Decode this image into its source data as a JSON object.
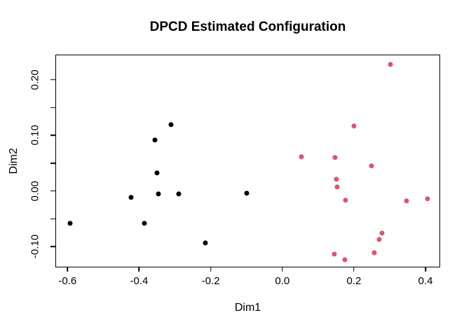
{
  "title": "DPCD Estimated Configuration",
  "chart_data": {
    "type": "scatter",
    "title": "DPCD Estimated Configuration",
    "xlabel": "Dim1",
    "ylabel": "Dim2",
    "xlim": [
      -0.632,
      0.439
    ],
    "ylim": [
      -0.136,
      0.244
    ],
    "grid": false,
    "legend": "none",
    "x_ticks": [
      {
        "value": -0.6,
        "label": "-0.6"
      },
      {
        "value": -0.4,
        "label": "-0.4"
      },
      {
        "value": -0.2,
        "label": "-0.2"
      },
      {
        "value": 0.0,
        "label": "0.0"
      },
      {
        "value": 0.2,
        "label": "0.2"
      },
      {
        "value": 0.4,
        "label": "0.4"
      }
    ],
    "y_ticks": [
      {
        "value": 0.2,
        "label": "0.20"
      },
      {
        "value": 0.15,
        "label": ""
      },
      {
        "value": 0.1,
        "label": "0.10"
      },
      {
        "value": 0.05,
        "label": ""
      },
      {
        "value": 0.0,
        "label": "0.00"
      },
      {
        "value": -0.05,
        "label": ""
      },
      {
        "value": -0.1,
        "label": "-0.10"
      }
    ],
    "series": [
      {
        "name": "cluster-1-black",
        "color": "#000000",
        "marker": "filled-circle",
        "points": [
          [
            -0.31,
            0.12
          ],
          [
            -0.355,
            0.092
          ],
          [
            -0.35,
            0.033
          ],
          [
            -0.346,
            -0.005
          ],
          [
            -0.29,
            -0.005
          ],
          [
            -0.423,
            -0.011
          ],
          [
            -0.593,
            -0.058
          ],
          [
            -0.386,
            -0.058
          ],
          [
            -0.1,
            -0.004
          ],
          [
            -0.214,
            -0.093
          ]
        ]
      },
      {
        "name": "cluster-2-rose",
        "color": "#DF536B",
        "marker": "filled-circle",
        "points": [
          [
            0.301,
            0.228
          ],
          [
            0.2,
            0.117
          ],
          [
            0.054,
            0.061
          ],
          [
            0.147,
            0.06
          ],
          [
            0.25,
            0.045
          ],
          [
            0.152,
            0.021
          ],
          [
            0.153,
            0.008
          ],
          [
            0.177,
            -0.017
          ],
          [
            0.347,
            -0.018
          ],
          [
            0.405,
            -0.014
          ],
          [
            0.279,
            -0.076
          ],
          [
            0.271,
            -0.087
          ],
          [
            0.257,
            -0.111
          ],
          [
            0.146,
            -0.113
          ],
          [
            0.175,
            -0.123
          ]
        ]
      }
    ]
  }
}
